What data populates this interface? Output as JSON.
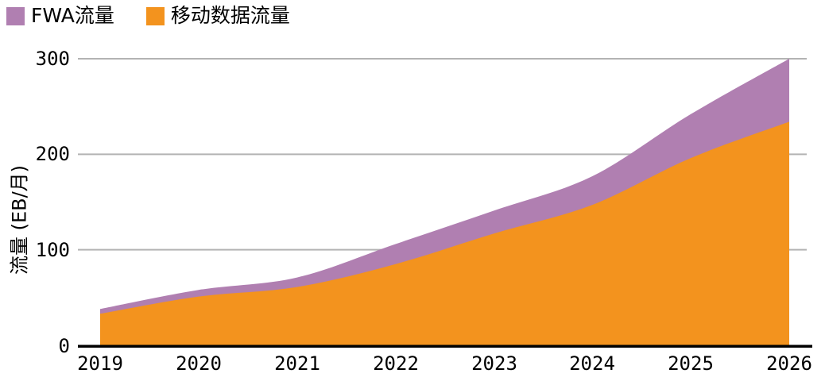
{
  "legend": {
    "items": [
      {
        "label": "FWA流量",
        "color": "#b07fb1"
      },
      {
        "label": "移动数据流量",
        "color": "#f3931e"
      }
    ]
  },
  "chart_data": {
    "type": "area",
    "stacked": true,
    "x": [
      "2019",
      "2020",
      "2021",
      "2022",
      "2023",
      "2024",
      "2025",
      "2026"
    ],
    "series": [
      {
        "name": "移动数据流量",
        "color": "#f3931e",
        "values": [
          33,
          51,
          61,
          85,
          117,
          147,
          196,
          234
        ]
      },
      {
        "name": "FWA流量",
        "color": "#b07fb1",
        "values": [
          5,
          7,
          10,
          21,
          24,
          30,
          46,
          66
        ]
      }
    ],
    "stacked_totals": [
      38,
      58,
      71,
      106,
      141,
      177,
      242,
      300
    ],
    "title": "",
    "xlabel": "",
    "ylabel": "流量 (EB/月)",
    "ylim": [
      0,
      300
    ],
    "yticks": [
      0,
      100,
      200,
      300
    ],
    "grid": "horizontal",
    "gridline_color": "#b3b3b3",
    "axis_color": "#000000",
    "legend_position": "top-left"
  }
}
